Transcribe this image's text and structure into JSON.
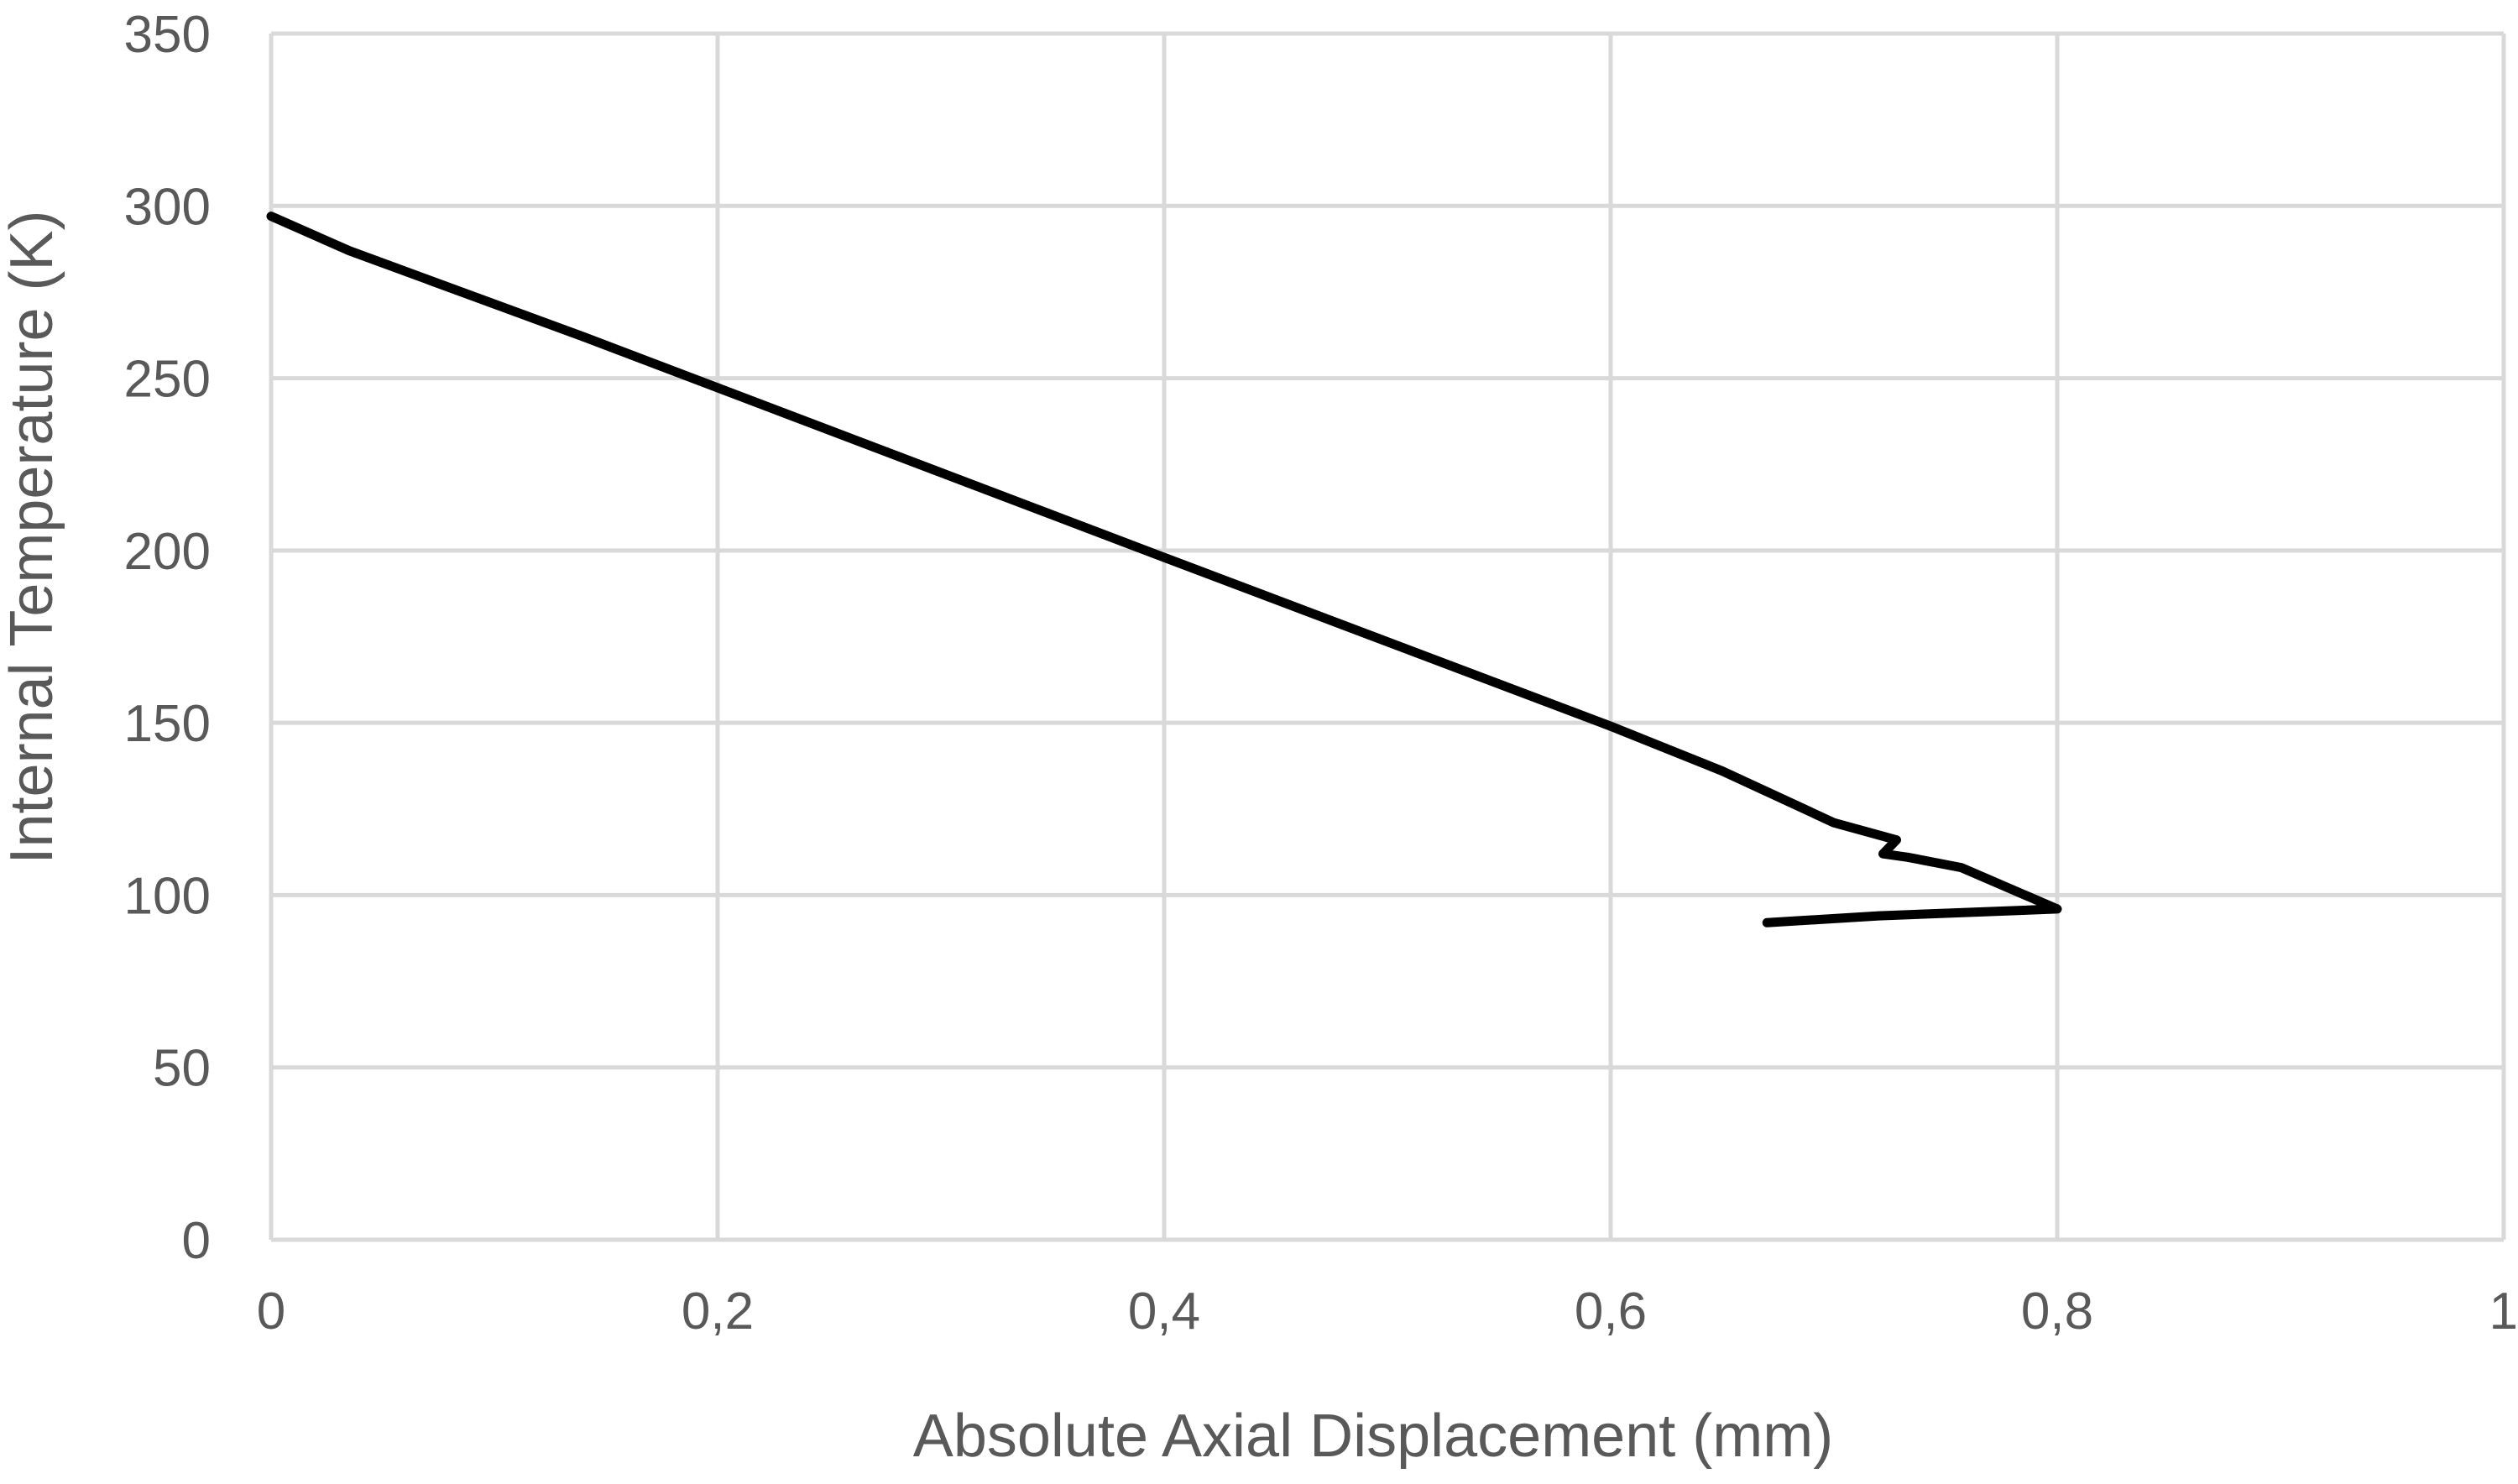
{
  "chart_data": {
    "type": "line",
    "title": "",
    "xlabel": "Absolute Axial Displacement (mm)",
    "ylabel": "Internal Temperature (K)",
    "xlim": [
      0,
      1
    ],
    "ylim": [
      0,
      350
    ],
    "x_ticks": [
      0,
      0.2,
      0.4,
      0.6,
      0.8,
      1
    ],
    "x_tick_labels": [
      "0",
      "0,2",
      "0,4",
      "0,6",
      "0,8",
      "1"
    ],
    "y_ticks": [
      0,
      50,
      100,
      150,
      200,
      250,
      300,
      350
    ],
    "y_tick_labels": [
      "0",
      "50",
      "100",
      "150",
      "200",
      "250",
      "300",
      "350"
    ],
    "grid": true,
    "legend": "none",
    "series": [
      {
        "color": "#000000",
        "points": [
          [
            0.0,
            297
          ],
          [
            0.035,
            287
          ],
          [
            0.14,
            262
          ],
          [
            0.4,
            198
          ],
          [
            0.6,
            149
          ],
          [
            0.65,
            136
          ],
          [
            0.7,
            121
          ],
          [
            0.728,
            116
          ],
          [
            0.722,
            112
          ],
          [
            0.733,
            111
          ],
          [
            0.757,
            108
          ],
          [
            0.8,
            96
          ],
          [
            0.72,
            94
          ],
          [
            0.67,
            92
          ]
        ]
      }
    ]
  }
}
